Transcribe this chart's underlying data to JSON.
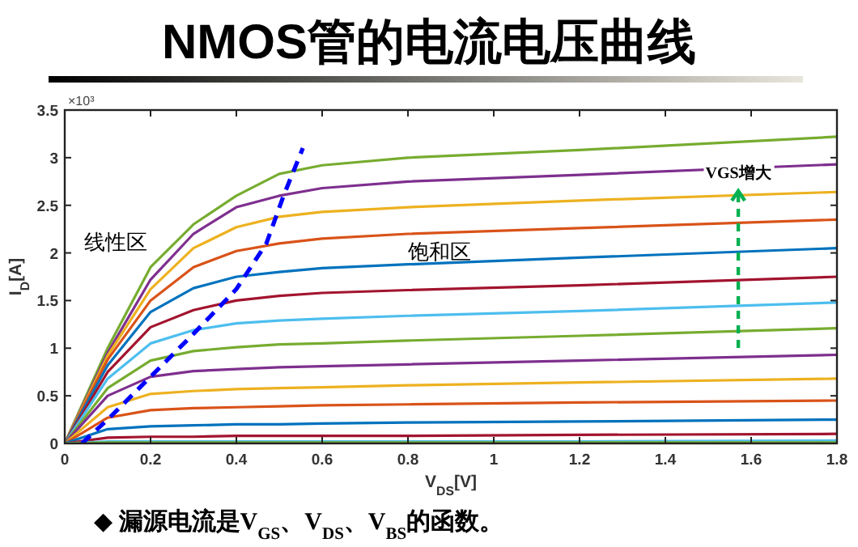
{
  "chart_data": {
    "type": "line",
    "title": "NMOS管的电流电压曲线",
    "xlabel": "V$_{DS}$[V]",
    "ylabel": "I$_{D}$[A]",
    "xlim": [
      0,
      1.8
    ],
    "xticks": [
      0,
      0.2,
      0.4,
      0.6,
      0.8,
      1,
      1.2,
      1.4,
      1.6,
      1.8
    ],
    "ylim": [
      0,
      3.5
    ],
    "yticks": [
      0,
      0.5,
      1,
      1.5,
      2,
      2.5,
      3,
      3.5
    ],
    "x": [
      0,
      0.1,
      0.2,
      0.3,
      0.4,
      0.5,
      0.6,
      0.8,
      1.2,
      1.8
    ],
    "grid": false,
    "series": [
      {
        "color": "#77ac30",
        "values": [
          0,
          1.0,
          1.85,
          2.3,
          2.6,
          2.83,
          2.92,
          3.0,
          3.08,
          3.22
        ]
      },
      {
        "color": "#7e2f8e",
        "values": [
          0,
          0.95,
          1.72,
          2.2,
          2.48,
          2.6,
          2.68,
          2.75,
          2.82,
          2.93
        ]
      },
      {
        "color": "#edb120",
        "values": [
          0,
          0.92,
          1.62,
          2.05,
          2.27,
          2.38,
          2.43,
          2.48,
          2.55,
          2.64
        ]
      },
      {
        "color": "#d95319",
        "values": [
          0,
          0.88,
          1.5,
          1.85,
          2.02,
          2.1,
          2.15,
          2.2,
          2.26,
          2.35
        ]
      },
      {
        "color": "#0072bd",
        "values": [
          0,
          0.82,
          1.38,
          1.63,
          1.75,
          1.8,
          1.84,
          1.88,
          1.95,
          2.05
        ]
      },
      {
        "color": "#a2142f",
        "values": [
          0,
          0.75,
          1.22,
          1.4,
          1.5,
          1.55,
          1.58,
          1.61,
          1.66,
          1.75
        ]
      },
      {
        "color": "#4dbeee",
        "values": [
          0,
          0.68,
          1.05,
          1.19,
          1.26,
          1.29,
          1.31,
          1.34,
          1.39,
          1.48
        ]
      },
      {
        "color": "#77ac30",
        "values": [
          0,
          0.58,
          0.87,
          0.97,
          1.01,
          1.04,
          1.05,
          1.08,
          1.13,
          1.21
        ]
      },
      {
        "color": "#7e2f8e",
        "values": [
          0,
          0.5,
          0.7,
          0.76,
          0.78,
          0.8,
          0.81,
          0.83,
          0.87,
          0.93
        ]
      },
      {
        "color": "#edb120",
        "values": [
          0,
          0.38,
          0.52,
          0.55,
          0.57,
          0.58,
          0.59,
          0.61,
          0.64,
          0.68
        ]
      },
      {
        "color": "#d95319",
        "values": [
          0,
          0.27,
          0.35,
          0.37,
          0.38,
          0.39,
          0.4,
          0.41,
          0.43,
          0.45
        ]
      },
      {
        "color": "#0072bd",
        "values": [
          0,
          0.15,
          0.18,
          0.19,
          0.2,
          0.2,
          0.21,
          0.22,
          0.23,
          0.25
        ]
      },
      {
        "color": "#a2142f",
        "values": [
          0,
          0.06,
          0.07,
          0.07,
          0.08,
          0.08,
          0.08,
          0.08,
          0.09,
          0.1
        ]
      },
      {
        "color": "#4dbeee",
        "values": [
          0,
          0.02,
          0.02,
          0.02,
          0.02,
          0.02,
          0.02,
          0.02,
          0.02,
          0.03
        ]
      },
      {
        "color": "#77ac30",
        "values": [
          0,
          0.01,
          0.01,
          0.01,
          0.01,
          0.01,
          0.01,
          0.01,
          0.01,
          0.01
        ]
      },
      {
        "color": "#0000ff",
        "line_style": "dashed",
        "x": [
          0.04,
          0.1,
          0.2,
          0.3,
          0.4,
          0.47,
          0.51,
          0.555
        ],
        "values": [
          0,
          0.25,
          0.7,
          1.15,
          1.62,
          2.1,
          2.6,
          3.1
        ]
      }
    ],
    "annotations": [
      "×10³",
      "线性区",
      "饱和区",
      {
        "text": "VGS增大",
        "x": 1.57,
        "y": 2.65
      },
      "◆ 漏源电流是V$_{GS}$、V$_{DS}$、V$_{BS}$的函数。"
    ]
  }
}
